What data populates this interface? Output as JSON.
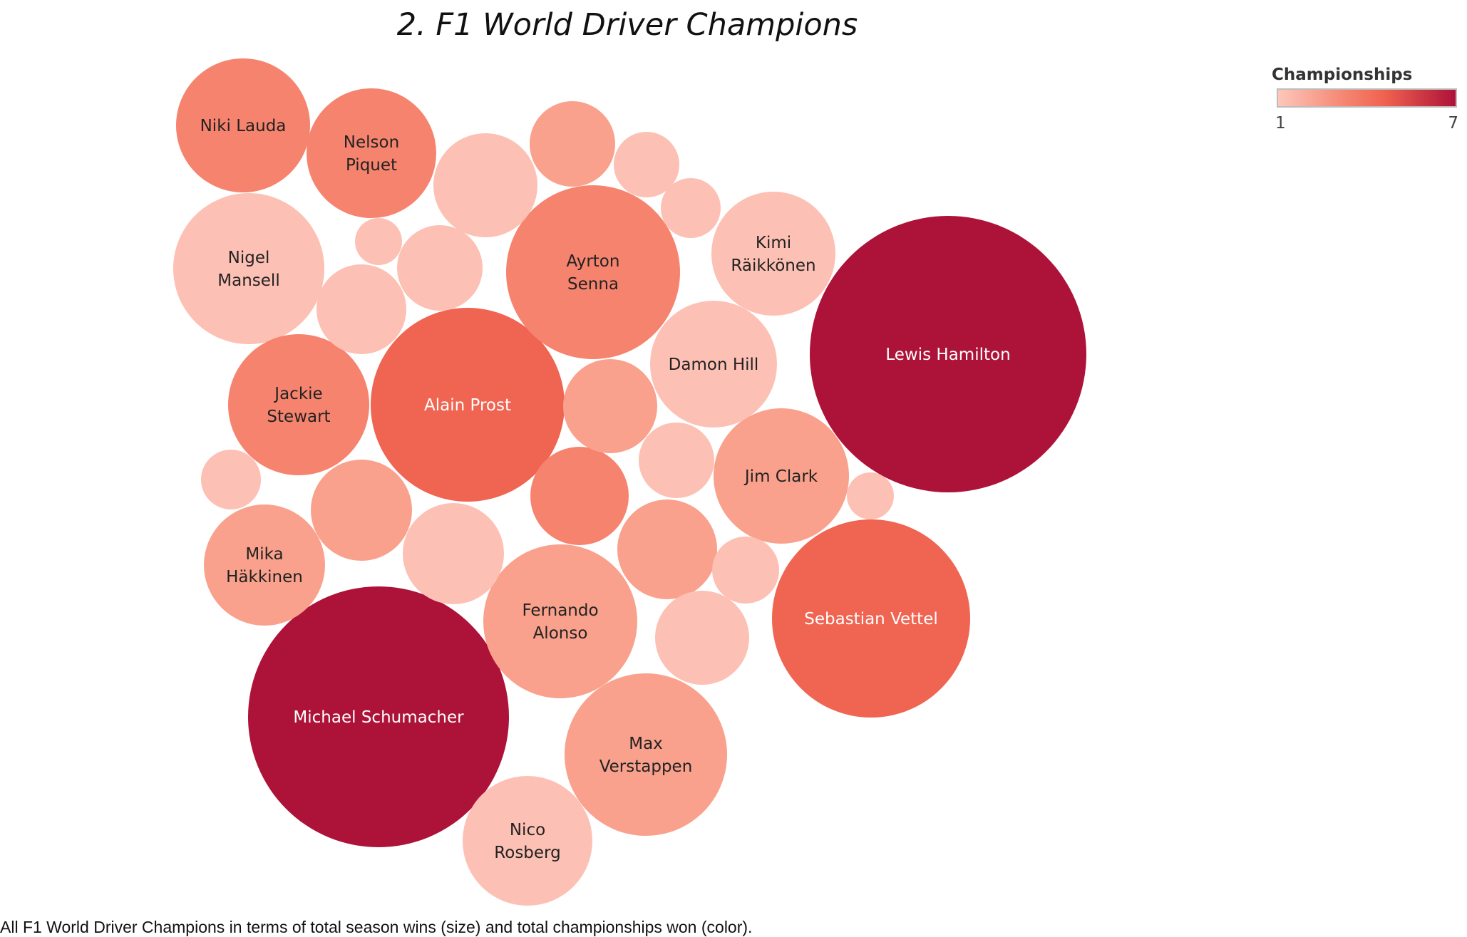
{
  "title": "2. F1 World Driver Champions",
  "caption": "All F1 World Driver Champions in terms of total season wins (size) and total championships won (color).",
  "legend": {
    "title": "Championships",
    "min_label": "1",
    "max_label": "7",
    "color_low": "#fdc7bb",
    "color_mid": "#f0624f",
    "color_high": "#ad1238"
  },
  "chart_data": {
    "type": "packed-bubble",
    "size_measure": "total season wins",
    "color_measure": "championships",
    "color_range": [
      1,
      7
    ],
    "bubbles": [
      {
        "label": "Lewis Hamilton",
        "championships": 7,
        "wins": 103
      },
      {
        "label": "Michael Schumacher",
        "championships": 7,
        "wins": 91
      },
      {
        "label": "Sebastian Vettel",
        "championships": 4,
        "wins": 53
      },
      {
        "label": "Alain Prost",
        "championships": 4,
        "wins": 51
      },
      {
        "label": "Ayrton Senna",
        "championships": 3,
        "wins": 41
      },
      {
        "label": "Fernando Alonso",
        "championships": 2,
        "wins": 32
      },
      {
        "label": "Nigel Mansell",
        "championships": 1,
        "wins": 31
      },
      {
        "label": "Max Verstappen",
        "championships": 2,
        "wins": 35
      },
      {
        "label": "Jackie Stewart",
        "championships": 3,
        "wins": 27
      },
      {
        "label": "Jim Clark",
        "championships": 2,
        "wins": 25
      },
      {
        "label": "Niki Lauda",
        "championships": 3,
        "wins": 25
      },
      {
        "label": "Nelson Piquet",
        "championships": 3,
        "wins": 23
      },
      {
        "label": "Nico Rosberg",
        "championships": 1,
        "wins": 23
      },
      {
        "label": "Damon Hill",
        "championships": 1,
        "wins": 22
      },
      {
        "label": "Kimi Räikkönen",
        "championships": 1,
        "wins": 21
      },
      {
        "label": "Mika Häkkinen",
        "championships": 2,
        "wins": 20
      },
      {
        "label": "",
        "championships": 2,
        "wins": 14
      },
      {
        "label": "",
        "championships": 1,
        "wins": 14
      },
      {
        "label": "",
        "championships": 1,
        "wins": 10
      },
      {
        "label": "",
        "championships": 1,
        "wins": 10
      },
      {
        "label": "",
        "championships": 1,
        "wins": 11
      },
      {
        "label": "",
        "championships": 3,
        "wins": 14
      },
      {
        "label": "",
        "championships": 2,
        "wins": 12
      },
      {
        "label": "",
        "championships": 2,
        "wins": 13
      },
      {
        "label": "",
        "championships": 1,
        "wins": 10
      },
      {
        "label": "",
        "championships": 2,
        "wins": 13
      },
      {
        "label": "",
        "championships": 1,
        "wins": 9
      },
      {
        "label": "",
        "championships": 1,
        "wins": 8
      },
      {
        "label": "",
        "championships": 1,
        "wins": 7
      },
      {
        "label": "",
        "championships": 1,
        "wins": 5
      },
      {
        "label": "",
        "championships": 1,
        "wins": 5
      },
      {
        "label": "",
        "championships": 1,
        "wins": 4
      },
      {
        "label": "",
        "championships": 1,
        "wins": 3
      },
      {
        "label": "",
        "championships": 1,
        "wins": 2
      }
    ]
  }
}
